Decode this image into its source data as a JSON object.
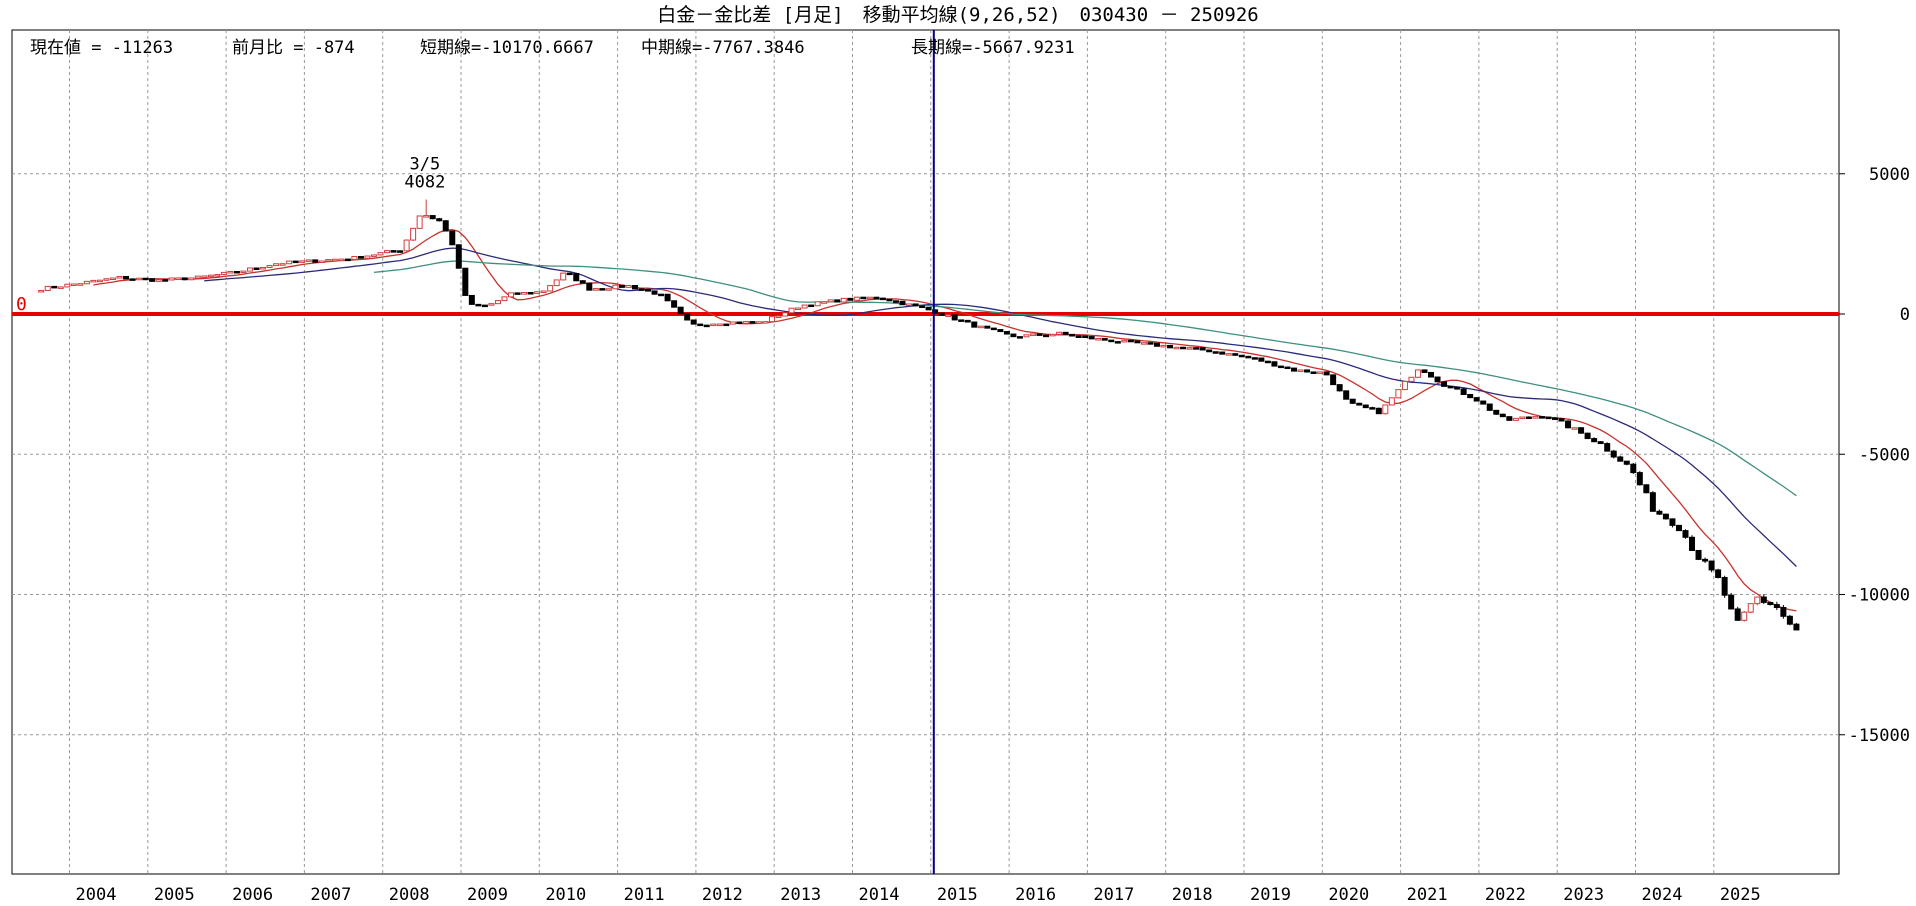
{
  "chart_data": {
    "type": "candlestick",
    "title": "白金－金比差 [月足]　移動平均線(9,26,52)　030430 － 250926",
    "stats": [
      {
        "label": "現在値 = ",
        "value": "-11263"
      },
      {
        "label": "前月比 = ",
        "value": "-874"
      },
      {
        "label": "短期線=",
        "value": "-10170.6667"
      },
      {
        "label": "中期線=",
        "value": "-7767.3846"
      },
      {
        "label": "長期線=",
        "value": "-5667.9231"
      }
    ],
    "x_start_year": 2003.3,
    "x_end_year": 2025.75,
    "ylim": [
      -20000,
      10000
    ],
    "y_ticks": [
      5000,
      0,
      -5000,
      -10000,
      -15000
    ],
    "y_tick_labels": [
      "5000",
      "0",
      "-5000",
      "-10000",
      "-15000"
    ],
    "x_tick_labels": [
      "2004",
      "2005",
      "2006",
      "2007",
      "2008",
      "2009",
      "2010",
      "2011",
      "2012",
      "2013",
      "2014",
      "2015",
      "2016",
      "2017",
      "2018",
      "2019",
      "2020",
      "2021",
      "2022",
      "2023",
      "2024",
      "2025"
    ],
    "zero_line": {
      "value": 0,
      "label": "0",
      "color": "#e60000"
    },
    "cursor_line": {
      "year": 2014.7,
      "color": "#00008b"
    },
    "peak_annotation": {
      "date_label": "3/5",
      "value_label": "4082",
      "year": 2008.2,
      "value": 4082
    },
    "ma_lines": [
      {
        "period": 9,
        "color": "#c8322d"
      },
      {
        "period": 26,
        "color": "#2b2b7a"
      },
      {
        "period": 52,
        "color": "#3f8f7f"
      }
    ],
    "up_color": "#d23c3c",
    "down_color": "#000000",
    "closes_anchor": [
      [
        2003.3,
        900
      ],
      [
        2003.8,
        1100
      ],
      [
        2004.3,
        1300
      ],
      [
        2004.8,
        1200
      ],
      [
        2005.3,
        1300
      ],
      [
        2005.8,
        1500
      ],
      [
        2006.3,
        1800
      ],
      [
        2006.8,
        1900
      ],
      [
        2007.3,
        2000
      ],
      [
        2007.9,
        2300
      ],
      [
        2008.15,
        3600
      ],
      [
        2008.4,
        3300
      ],
      [
        2008.55,
        2500
      ],
      [
        2008.75,
        300
      ],
      [
        2009.0,
        300
      ],
      [
        2009.3,
        700
      ],
      [
        2009.7,
        800
      ],
      [
        2010.0,
        1500
      ],
      [
        2010.3,
        900
      ],
      [
        2010.8,
        1000
      ],
      [
        2011.2,
        700
      ],
      [
        2011.6,
        -400
      ],
      [
        2012.0,
        -300
      ],
      [
        2012.5,
        -300
      ],
      [
        2013.0,
        300
      ],
      [
        2013.5,
        500
      ],
      [
        2014.0,
        600
      ],
      [
        2014.7,
        100
      ],
      [
        2015.2,
        -400
      ],
      [
        2015.7,
        -800
      ],
      [
        2016.3,
        -700
      ],
      [
        2016.8,
        -900
      ],
      [
        2017.5,
        -1100
      ],
      [
        2018.2,
        -1300
      ],
      [
        2018.8,
        -1600
      ],
      [
        2019.3,
        -2000
      ],
      [
        2019.7,
        -2100
      ],
      [
        2020.0,
        -3200
      ],
      [
        2020.4,
        -3500
      ],
      [
        2020.7,
        -2500
      ],
      [
        2020.9,
        -1900
      ],
      [
        2021.2,
        -2500
      ],
      [
        2021.6,
        -3000
      ],
      [
        2022.0,
        -3800
      ],
      [
        2022.5,
        -3600
      ],
      [
        2022.8,
        -4000
      ],
      [
        2023.2,
        -4600
      ],
      [
        2023.6,
        -5500
      ],
      [
        2023.9,
        -7000
      ],
      [
        2024.2,
        -7500
      ],
      [
        2024.5,
        -8800
      ],
      [
        2024.75,
        -9600
      ],
      [
        2024.95,
        -11200
      ],
      [
        2025.2,
        -10100
      ],
      [
        2025.45,
        -10400
      ],
      [
        2025.68,
        -11263
      ]
    ]
  }
}
